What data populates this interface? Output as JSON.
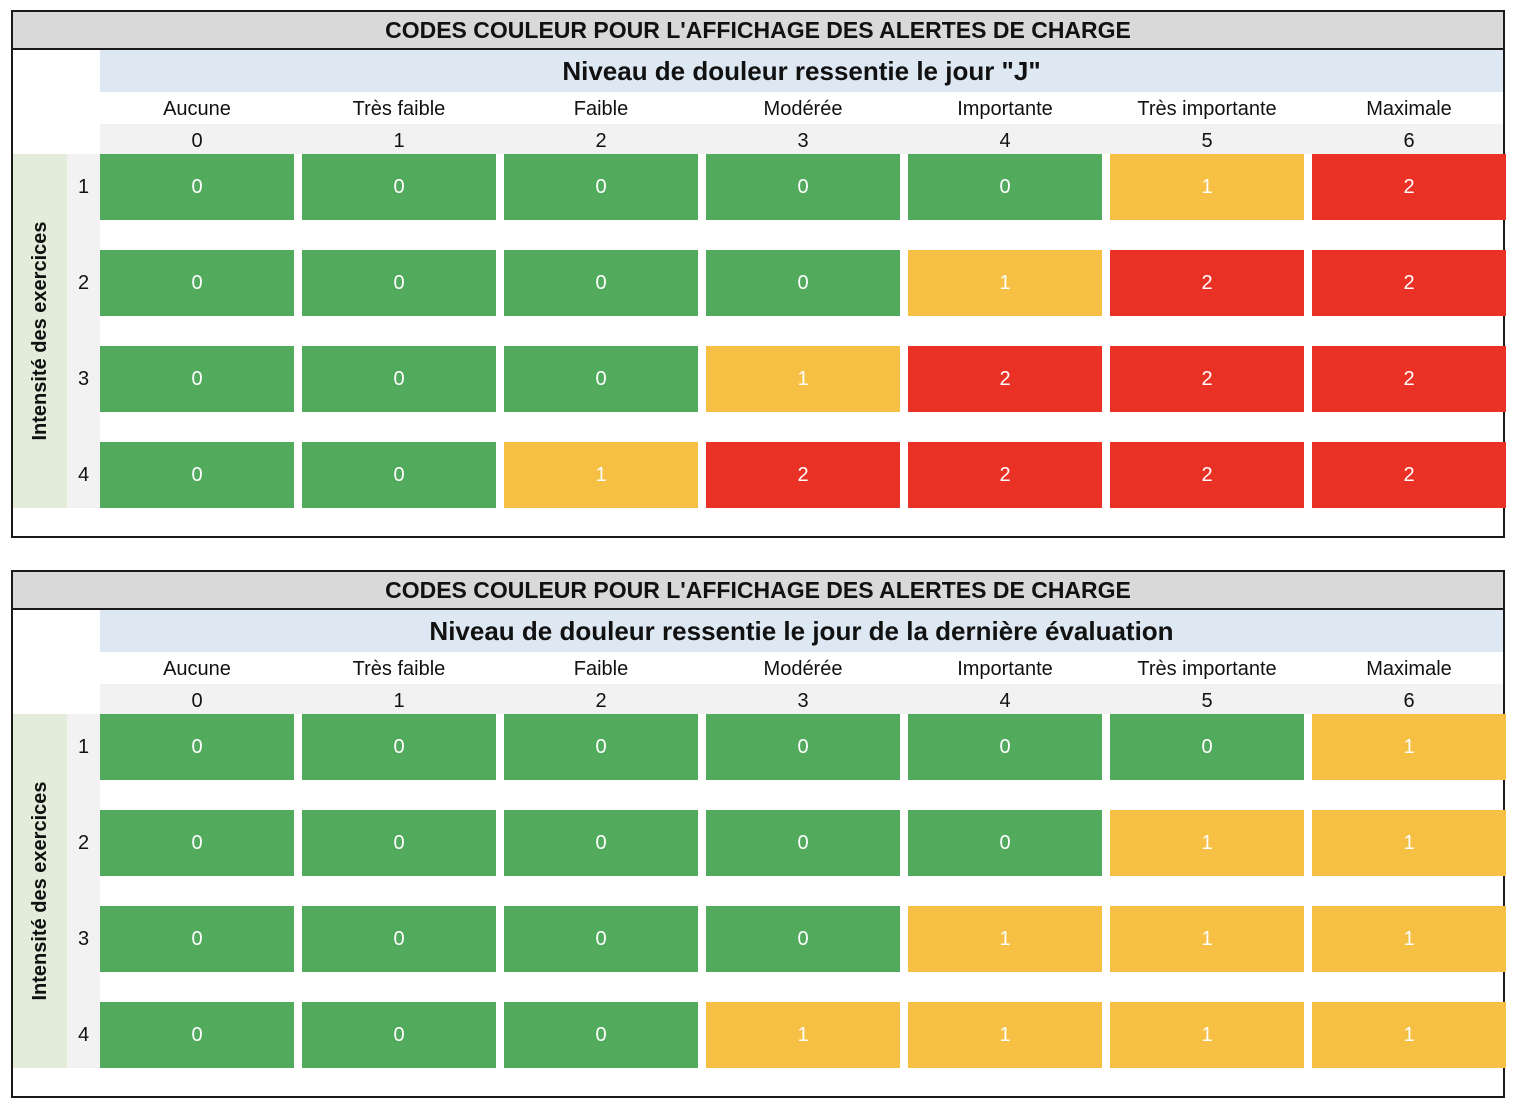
{
  "colors": {
    "level_0": "#52ab5c",
    "level_1": "#f5c043",
    "level_2": "#ea3126"
  },
  "tables": [
    {
      "title": "CODES COULEUR POUR L'AFFICHAGE DES ALERTES DE CHARGE",
      "subtitle": "Niveau de douleur ressentie le jour \"J\"",
      "row_axis_label": "Intensité des exercices",
      "columns": [
        {
          "label": "Aucune",
          "value": "0"
        },
        {
          "label": "Très faible",
          "value": "1"
        },
        {
          "label": "Faible",
          "value": "2"
        },
        {
          "label": "Modérée",
          "value": "3"
        },
        {
          "label": "Importante",
          "value": "4"
        },
        {
          "label": "Très importante",
          "value": "5"
        },
        {
          "label": "Maximale",
          "value": "6"
        }
      ],
      "rows": [
        {
          "label": "1",
          "cells": [
            "0",
            "0",
            "0",
            "0",
            "0",
            "1",
            "2"
          ]
        },
        {
          "label": "2",
          "cells": [
            "0",
            "0",
            "0",
            "0",
            "1",
            "2",
            "2"
          ]
        },
        {
          "label": "3",
          "cells": [
            "0",
            "0",
            "0",
            "1",
            "2",
            "2",
            "2"
          ]
        },
        {
          "label": "4",
          "cells": [
            "0",
            "0",
            "1",
            "2",
            "2",
            "2",
            "2"
          ]
        }
      ]
    },
    {
      "title": "CODES COULEUR POUR L'AFFICHAGE DES ALERTES DE CHARGE",
      "subtitle": "Niveau de douleur ressentie le jour de la dernière évaluation",
      "row_axis_label": "Intensité des exercices",
      "columns": [
        {
          "label": "Aucune",
          "value": "0"
        },
        {
          "label": "Très faible",
          "value": "1"
        },
        {
          "label": "Faible",
          "value": "2"
        },
        {
          "label": "Modérée",
          "value": "3"
        },
        {
          "label": "Importante",
          "value": "4"
        },
        {
          "label": "Très importante",
          "value": "5"
        },
        {
          "label": "Maximale",
          "value": "6"
        }
      ],
      "rows": [
        {
          "label": "1",
          "cells": [
            "0",
            "0",
            "0",
            "0",
            "0",
            "0",
            "1"
          ]
        },
        {
          "label": "2",
          "cells": [
            "0",
            "0",
            "0",
            "0",
            "0",
            "1",
            "1"
          ]
        },
        {
          "label": "3",
          "cells": [
            "0",
            "0",
            "0",
            "0",
            "1",
            "1",
            "1"
          ]
        },
        {
          "label": "4",
          "cells": [
            "0",
            "0",
            "0",
            "1",
            "1",
            "1",
            "1"
          ]
        }
      ]
    }
  ]
}
